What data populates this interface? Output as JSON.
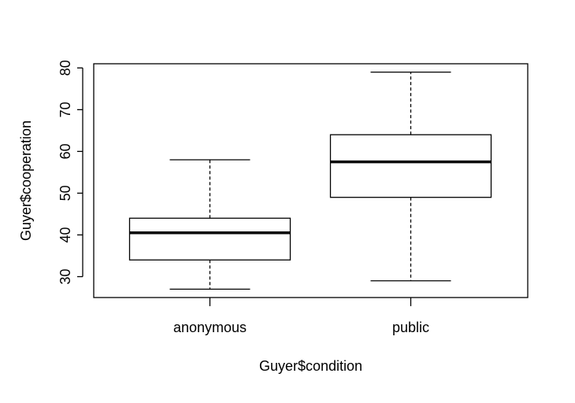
{
  "chart_data": {
    "type": "boxplot",
    "title": "",
    "xlabel": "Guyer$condition",
    "ylabel": "Guyer$cooperation",
    "ylim": [
      25,
      81
    ],
    "yticks": [
      30,
      40,
      50,
      60,
      70,
      80
    ],
    "categories": [
      "anonymous",
      "public"
    ],
    "boxes": [
      {
        "category": "anonymous",
        "whisker_low": 27,
        "q1": 34,
        "median": 40.5,
        "q3": 44,
        "whisker_high": 58
      },
      {
        "category": "public",
        "whisker_low": 29,
        "q1": 49,
        "median": 57.5,
        "q3": 64,
        "whisker_high": 79
      }
    ],
    "grid": false,
    "colors": {
      "stroke": "#000000",
      "fill": "#ffffff"
    }
  }
}
